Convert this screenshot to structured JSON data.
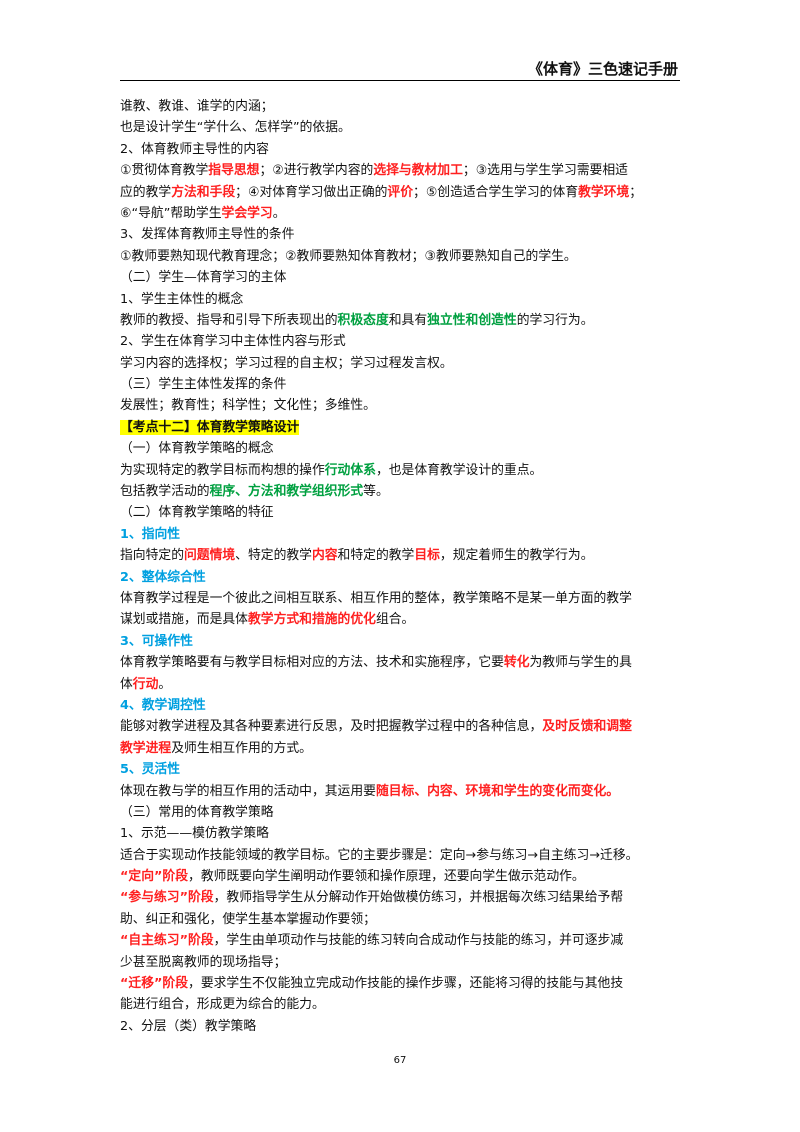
{
  "header": {
    "title": "《体育》三色速记手册"
  },
  "page_number": "67",
  "lines": [
    {
      "segments": [
        {
          "t": "谁教、教谁、谁学的内涵；"
        }
      ]
    },
    {
      "segments": [
        {
          "t": "也是设计学生“学什么、怎样学”的依据。"
        }
      ]
    },
    {
      "segments": [
        {
          "t": "2、体育教师主导性的内容"
        }
      ]
    },
    {
      "segments": [
        {
          "t": "①贯彻体育教学"
        },
        {
          "t": "指导思想",
          "c": "red"
        },
        {
          "t": "；②进行教学内容的"
        },
        {
          "t": "选择与教材加工",
          "c": "red"
        },
        {
          "t": "；③选用与学生学习需要相适"
        }
      ]
    },
    {
      "segments": [
        {
          "t": "应的教学"
        },
        {
          "t": "方法和手段",
          "c": "red"
        },
        {
          "t": "；④对体育学习做出正确的"
        },
        {
          "t": "评价",
          "c": "red"
        },
        {
          "t": "；⑤创造适合学生学习的体育"
        },
        {
          "t": "教学环境",
          "c": "red"
        },
        {
          "t": "；"
        }
      ]
    },
    {
      "segments": [
        {
          "t": "⑥“导航”帮助学生"
        },
        {
          "t": "学会学习",
          "c": "red"
        },
        {
          "t": "。"
        }
      ]
    },
    {
      "segments": [
        {
          "t": "3、发挥体育教师主导性的条件"
        }
      ]
    },
    {
      "segments": [
        {
          "t": "①教师要熟知现代教育理念；②教师要熟知体育教材；③教师要熟知自己的学生。"
        }
      ]
    },
    {
      "segments": [
        {
          "t": "（二）学生—体育学习的主体"
        }
      ]
    },
    {
      "segments": [
        {
          "t": "1、学生主体性的概念"
        }
      ]
    },
    {
      "segments": [
        {
          "t": "教师的教授、指导和引导下所表现出的"
        },
        {
          "t": "积极态度",
          "c": "green"
        },
        {
          "t": "和具有"
        },
        {
          "t": "独立性和创造性",
          "c": "green"
        },
        {
          "t": "的学习行为。"
        }
      ]
    },
    {
      "segments": [
        {
          "t": "2、学生在体育学习中主体性内容与形式"
        }
      ]
    },
    {
      "segments": [
        {
          "t": "学习内容的选择权；学习过程的自主权；学习过程发言权。"
        }
      ]
    },
    {
      "segments": [
        {
          "t": "（三）学生主体性发挥的条件"
        }
      ]
    },
    {
      "segments": [
        {
          "t": "发展性；教育性；科学性；文化性；多维性。"
        }
      ]
    },
    {
      "segments": [
        {
          "t": "【考点十二】体育教学策略设计",
          "c": "hl"
        }
      ]
    },
    {
      "segments": [
        {
          "t": "（一）体育教学策略的概念"
        }
      ]
    },
    {
      "segments": [
        {
          "t": "为实现特定的教学目标而构想的操作"
        },
        {
          "t": "行动体系",
          "c": "green"
        },
        {
          "t": "，也是体育教学设计的重点。"
        }
      ]
    },
    {
      "segments": [
        {
          "t": "包括教学活动的"
        },
        {
          "t": "程序、方法和教学组织形式",
          "c": "green"
        },
        {
          "t": "等。"
        }
      ]
    },
    {
      "segments": [
        {
          "t": "（二）体育教学策略的特征"
        }
      ]
    },
    {
      "segments": [
        {
          "t": "1、指向性",
          "c": "blue"
        }
      ]
    },
    {
      "segments": [
        {
          "t": "指向特定的"
        },
        {
          "t": "问题情境",
          "c": "red"
        },
        {
          "t": "、特定的教学"
        },
        {
          "t": "内容",
          "c": "red"
        },
        {
          "t": "和特定的教学"
        },
        {
          "t": "目标",
          "c": "red"
        },
        {
          "t": "，规定着师生的教学行为。"
        }
      ]
    },
    {
      "segments": [
        {
          "t": "2、整体综合性",
          "c": "blue"
        }
      ]
    },
    {
      "segments": [
        {
          "t": "体育教学过程是一个彼此之间相互联系、相互作用的整体，教学策略不是某一单方面的教学"
        }
      ]
    },
    {
      "segments": [
        {
          "t": "谋划或措施，而是具体"
        },
        {
          "t": "教学方式和措施的优化",
          "c": "red"
        },
        {
          "t": "组合。"
        }
      ]
    },
    {
      "segments": [
        {
          "t": "3、可操作性",
          "c": "blue"
        }
      ]
    },
    {
      "segments": [
        {
          "t": "体育教学策略要有与教学目标相对应的方法、技术和实施程序，它要"
        },
        {
          "t": "转化",
          "c": "red"
        },
        {
          "t": "为教师与学生的具"
        }
      ]
    },
    {
      "segments": [
        {
          "t": "体"
        },
        {
          "t": "行动",
          "c": "red"
        },
        {
          "t": "。"
        }
      ]
    },
    {
      "segments": [
        {
          "t": "4、教学调控性",
          "c": "blue"
        }
      ]
    },
    {
      "segments": [
        {
          "t": "能够对教学进程及其各种要素进行反思，及时把握教学过程中的各种信息，"
        },
        {
          "t": "及时反馈和调整",
          "c": "red"
        }
      ]
    },
    {
      "segments": [
        {
          "t": "教学进程",
          "c": "red"
        },
        {
          "t": "及师生相互作用的方式。"
        }
      ]
    },
    {
      "segments": [
        {
          "t": "5、灵活性",
          "c": "blue"
        }
      ]
    },
    {
      "segments": [
        {
          "t": "体现在教与学的相互作用的活动中，其运用要"
        },
        {
          "t": "随目标、内容、环境和学生的变化而变化。",
          "c": "red"
        }
      ]
    },
    {
      "segments": [
        {
          "t": "（三）常用的体育教学策略"
        }
      ]
    },
    {
      "segments": [
        {
          "t": "1、示范——模仿教学策略"
        }
      ]
    },
    {
      "segments": [
        {
          "t": "适合于实现动作技能领域的教学目标。它的主要步骤是：定向→参与练习→自主练习→迁移。"
        }
      ]
    },
    {
      "segments": [
        {
          "t": "“定向”阶段",
          "c": "red"
        },
        {
          "t": "，教师既要向学生阐明动作要领和操作原理，还要向学生做示范动作。"
        }
      ]
    },
    {
      "segments": [
        {
          "t": "“参与练习”阶段",
          "c": "red"
        },
        {
          "t": "，教师指导学生从分解动作开始做模仿练习，并根据每次练习结果给予帮"
        }
      ]
    },
    {
      "segments": [
        {
          "t": "助、纠正和强化，使学生基本掌握动作要领；"
        }
      ]
    },
    {
      "segments": [
        {
          "t": "“自主练习”阶段",
          "c": "red"
        },
        {
          "t": "，学生由单项动作与技能的练习转向合成动作与技能的练习，并可逐步减"
        }
      ]
    },
    {
      "segments": [
        {
          "t": "少甚至脱离教师的现场指导；"
        }
      ]
    },
    {
      "segments": [
        {
          "t": "“迁移”阶段",
          "c": "red"
        },
        {
          "t": "，要求学生不仅能独立完成动作技能的操作步骤，还能将习得的技能与其他技"
        }
      ]
    },
    {
      "segments": [
        {
          "t": "能进行组合，形成更为综合的能力。"
        }
      ]
    },
    {
      "segments": [
        {
          "t": "2、分层（类）教学策略"
        }
      ]
    }
  ]
}
